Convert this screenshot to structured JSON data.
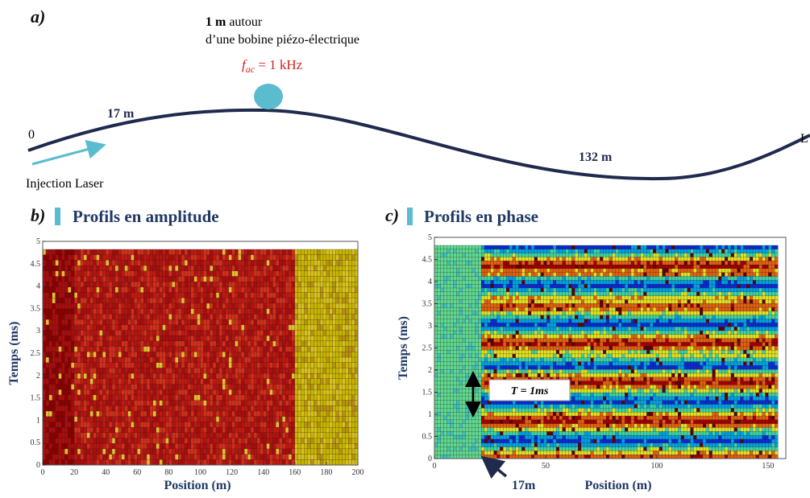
{
  "panel_a": {
    "label": "a)",
    "coil_bold": "1 m",
    "coil_text": " autour",
    "coil_text_2": "d’une bobine piézo-électrique",
    "freq_symbol": "f",
    "freq_sub": "ac",
    "freq_rest": " = 1 kHz",
    "start": "0",
    "first_length": "17 m",
    "second_length": "132 m",
    "end": "L",
    "injection": "Injection Laser"
  },
  "panel_b": {
    "label": "b)",
    "title": "Profils en amplitude",
    "ylabel": "Temps (ms)",
    "xlabel": "Position (m)",
    "xlim": [
      0,
      200
    ],
    "ylim": [
      0,
      5
    ],
    "xticks": [
      0,
      20,
      40,
      60,
      80,
      100,
      120,
      140,
      160,
      180,
      200
    ],
    "yticks": [
      0,
      0.5,
      1,
      1.5,
      2,
      2.5,
      3,
      3.5,
      4,
      4.5,
      5
    ]
  },
  "panel_c": {
    "label": "c)",
    "title": "Profils en phase",
    "ylabel": "Temps (ms)",
    "xlabel": "Position (m)",
    "xlim": [
      0,
      158
    ],
    "ylim": [
      0,
      5
    ],
    "xticks": [
      0,
      50,
      100,
      150
    ],
    "yticks": [
      0,
      0.5,
      1,
      1.5,
      2,
      2.5,
      3,
      3.5,
      4,
      4.5,
      5
    ],
    "period": "T = 1ms",
    "position_marker": "17m"
  }
}
